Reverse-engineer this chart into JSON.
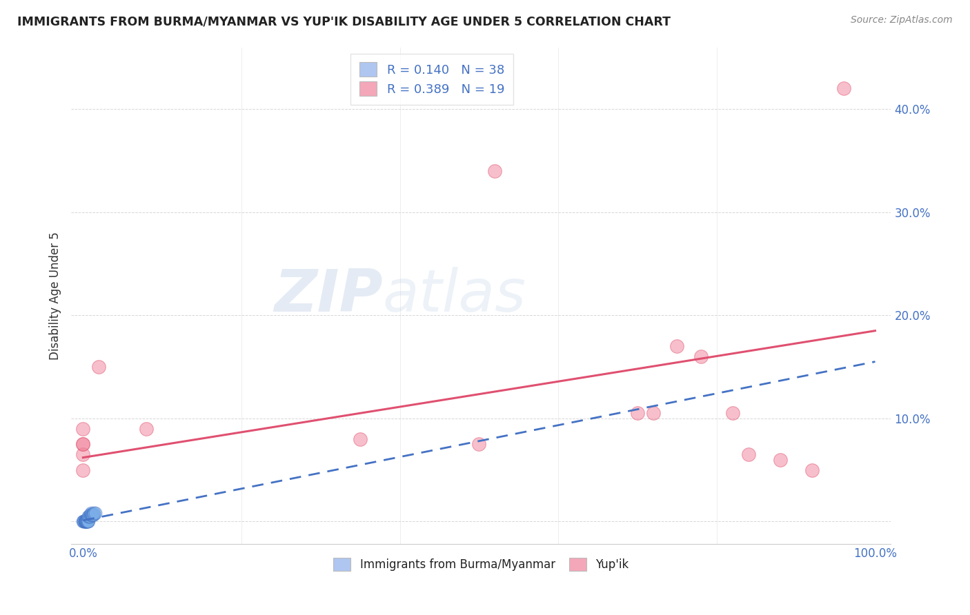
{
  "title": "IMMIGRANTS FROM BURMA/MYANMAR VS YUP'IK DISABILITY AGE UNDER 5 CORRELATION CHART",
  "source": "Source: ZipAtlas.com",
  "ylabel": "Disability Age Under 5",
  "legend_label1": "R = 0.140   N = 38",
  "legend_label2": "R = 0.389   N = 19",
  "legend_color1": "#aec6f0",
  "legend_color2": "#f4a7b9",
  "watermark_zip": "ZIP",
  "watermark_atlas": "atlas",
  "blue_color": "#7baee8",
  "pink_color": "#f08098",
  "blue_line_color": "#4472c4",
  "pink_line_color": "#e05070",
  "background_color": "#ffffff",
  "text_color": "#4472c4",
  "blue_scatter_x": [
    0.0,
    0.001,
    0.001,
    0.002,
    0.002,
    0.002,
    0.002,
    0.003,
    0.003,
    0.003,
    0.003,
    0.003,
    0.004,
    0.004,
    0.004,
    0.005,
    0.005,
    0.005,
    0.006,
    0.006,
    0.006,
    0.007,
    0.007,
    0.007,
    0.008,
    0.008,
    0.009,
    0.009,
    0.01,
    0.01,
    0.011,
    0.011,
    0.012,
    0.012,
    0.013,
    0.014,
    0.014,
    0.015
  ],
  "blue_scatter_y": [
    0.0,
    0.0,
    0.0,
    0.0,
    0.0,
    0.0,
    0.0,
    0.0,
    0.0,
    0.0,
    0.0,
    0.0,
    0.0,
    0.0,
    0.0,
    0.0,
    0.0,
    0.0,
    0.0,
    0.0,
    0.0,
    0.0,
    0.005,
    0.005,
    0.005,
    0.005,
    0.006,
    0.007,
    0.007,
    0.008,
    0.006,
    0.007,
    0.006,
    0.006,
    0.007,
    0.007,
    0.008,
    0.008
  ],
  "pink_scatter_x": [
    0.0,
    0.0,
    0.0,
    0.0,
    0.0,
    0.02,
    0.08,
    0.35,
    0.5,
    0.52,
    0.7,
    0.72,
    0.75,
    0.78,
    0.82,
    0.84,
    0.88,
    0.92,
    0.96
  ],
  "pink_scatter_y": [
    0.05,
    0.065,
    0.075,
    0.075,
    0.09,
    0.15,
    0.09,
    0.08,
    0.075,
    0.34,
    0.105,
    0.105,
    0.17,
    0.16,
    0.105,
    0.065,
    0.06,
    0.05,
    0.42
  ],
  "blue_trend_x": [
    0.0,
    1.0
  ],
  "blue_trend_y": [
    0.001,
    0.155
  ],
  "pink_trend_x": [
    0.0,
    1.0
  ],
  "pink_trend_y": [
    0.062,
    0.185
  ],
  "xlim": [
    -0.015,
    1.02
  ],
  "ylim": [
    -0.022,
    0.46
  ],
  "ytick_positions": [
    0.0,
    0.1,
    0.2,
    0.3,
    0.4
  ],
  "ytick_labels": [
    "",
    "10.0%",
    "20.0%",
    "30.0%",
    "40.0%"
  ]
}
